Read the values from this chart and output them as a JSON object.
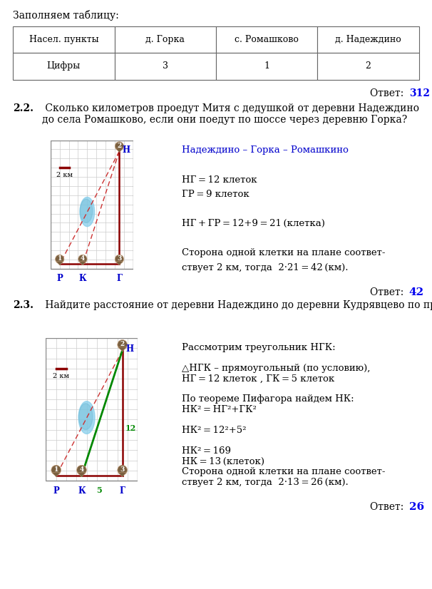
{
  "bg_color": "#ffffff",
  "title_section1": "Заполняем таблицу:",
  "table_headers": [
    "Насел. пункты",
    "д. Горка",
    "с. Ромашково",
    "д. Надеждино"
  ],
  "table_row1": [
    "Цифры",
    "3",
    "1",
    "2"
  ],
  "answer1_prefix": "Ответ: ",
  "answer1_value": "312",
  "q2_bold": "2.2.",
  "q2_text": " Сколько километров проедут Митя с дедушкой от деревни Надеждино до села Ромашково, если они поедут по шоссе через деревню Горка?",
  "q2_route": "Надеждино – Горка – Ромашкино",
  "answer2_prefix": "Ответ: ",
  "answer2_value": "42",
  "q3_bold": "2.3.",
  "q3_text": " Найдите расстояние от деревни Надеждино до деревни Кудрявцево по прямой. Ответ дайте в километрах.",
  "answer3_prefix": "Ответ: ",
  "answer3_value": "26",
  "dark_red": "#8B0000",
  "dashed_color": "#cc3333",
  "green_color": "#008800",
  "blue_label": "#0000cc",
  "blue_answer": "#0000ee",
  "pin_color": "#7a6040",
  "lake_color": "#87CEEB",
  "scale_bar_color": "#8B0000",
  "grid_color": "#cccccc",
  "map_bg": "#f0efe8"
}
